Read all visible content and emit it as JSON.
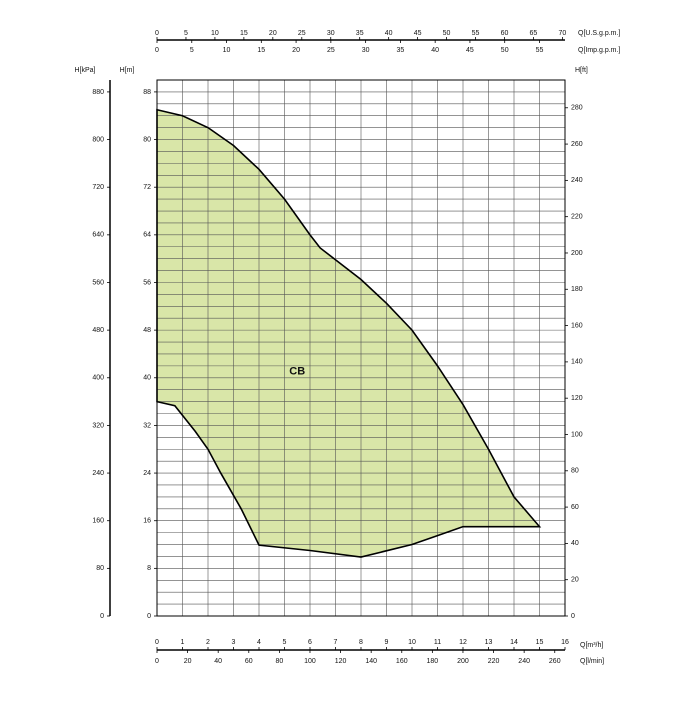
{
  "chart_data": {
    "type": "area",
    "annotation": "CB",
    "color": "#d9e6a8",
    "x": [
      0,
      1,
      2,
      3,
      4,
      5,
      6,
      6.4,
      8,
      9,
      10,
      11,
      12,
      13,
      14,
      15,
      12,
      11,
      10,
      8,
      6,
      4,
      3.3,
      2.5,
      2,
      1.5,
      0.7,
      0
    ],
    "y": [
      85,
      84,
      82,
      79,
      75,
      70,
      64,
      61.8,
      56.5,
      52.5,
      48,
      42,
      35.5,
      28,
      20,
      15,
      15,
      13.5,
      12,
      9.9,
      11,
      11.9,
      18,
      24,
      28,
      31,
      35.3,
      36
    ],
    "xlabel": "Q[m³/h]",
    "xlim": [
      0,
      16
    ],
    "xticks": [
      0,
      1,
      2,
      3,
      4,
      5,
      6,
      7,
      8,
      9,
      10,
      11,
      12,
      13,
      14,
      15,
      16
    ],
    "ylabel": "H[m]",
    "ylim": [
      0,
      90
    ],
    "yticks": [
      0,
      8,
      16,
      24,
      32,
      40,
      48,
      56,
      64,
      72,
      80,
      88
    ],
    "grid": true,
    "secondary_axes": [
      {
        "side": "left",
        "label": "H[kPa]",
        "lim": [
          0,
          900
        ],
        "ticks": [
          0,
          80,
          160,
          240,
          320,
          400,
          480,
          560,
          640,
          720,
          800,
          880
        ]
      },
      {
        "side": "right",
        "label": "H[ft]",
        "lim": [
          0,
          295.3
        ],
        "ticks": [
          0,
          20,
          40,
          60,
          80,
          100,
          120,
          140,
          160,
          180,
          200,
          220,
          240,
          260,
          280
        ]
      },
      {
        "side": "top",
        "label": "Q[U.S.g.p.m.]",
        "lim": [
          0,
          70.45
        ],
        "ticks": [
          0,
          5,
          10,
          15,
          20,
          25,
          30,
          35,
          40,
          45,
          50,
          55,
          60,
          65,
          70
        ]
      },
      {
        "side": "top",
        "label": "Q[Imp.g.p.m.]",
        "lim": [
          0,
          58.67
        ],
        "ticks": [
          0,
          5,
          10,
          15,
          20,
          25,
          30,
          35,
          40,
          45,
          50,
          55
        ]
      },
      {
        "side": "bottom",
        "label": "Q[l/min]",
        "lim": [
          0,
          266.7
        ],
        "ticks": [
          0,
          20,
          40,
          60,
          80,
          100,
          120,
          140,
          160,
          180,
          200,
          220,
          240,
          260
        ]
      }
    ]
  }
}
